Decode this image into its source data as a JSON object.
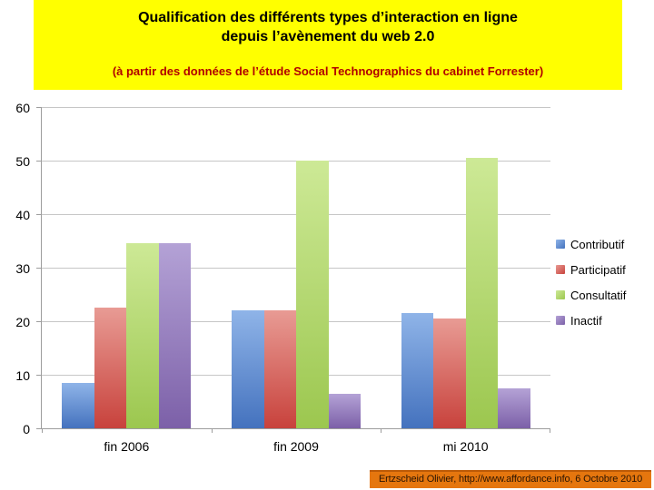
{
  "banner": {
    "title_line1": "Qualification des différents types d’interaction en ligne",
    "title_line2": "depuis l’avènement du web 2.0",
    "subtitle": "(à partir des données de l’étude Social Technographics du cabinet Forrester)",
    "bg": "#FFFF00",
    "title_color": "#000000",
    "subtitle_color": "#B00000"
  },
  "chart_data": {
    "type": "bar",
    "categories": [
      "fin 2006",
      "fin 2009",
      "mi 2010"
    ],
    "series": [
      {
        "name": "Contributif",
        "color": "#4F81BD",
        "color_light": "#8FB4E8",
        "color_dark": "#4472BE",
        "values": [
          8.5,
          22,
          21.5
        ]
      },
      {
        "name": "Participatif",
        "color": "#C0504D",
        "color_light": "#E89B94",
        "color_dark": "#C8423C",
        "values": [
          22.5,
          22,
          20.5
        ]
      },
      {
        "name": "Consultatif",
        "color": "#9BBB59",
        "color_light": "#CDE996",
        "color_dark": "#9CC74F",
        "values": [
          34.5,
          50,
          50.5
        ]
      },
      {
        "name": "Inactif",
        "color": "#8064A2",
        "color_light": "#B4A2D6",
        "color_dark": "#7C60A8",
        "values": [
          34.5,
          6.5,
          7.5
        ]
      }
    ],
    "title": "",
    "xlabel": "",
    "ylabel": "",
    "ylim": [
      0,
      60
    ],
    "ytick_step": 10,
    "yticks": [
      "0",
      "10",
      "20",
      "30",
      "40",
      "50",
      "60"
    ],
    "grid": true,
    "legend_position": "right",
    "gridline_color": "#c6c6c6",
    "axis_color": "#9d9d9d"
  },
  "footer": {
    "text": "Ertzscheid Olivier, http://www.affordance.info, 6 Octobre 2010",
    "bg": "#E5760E",
    "text_color": "#2B1503"
  }
}
